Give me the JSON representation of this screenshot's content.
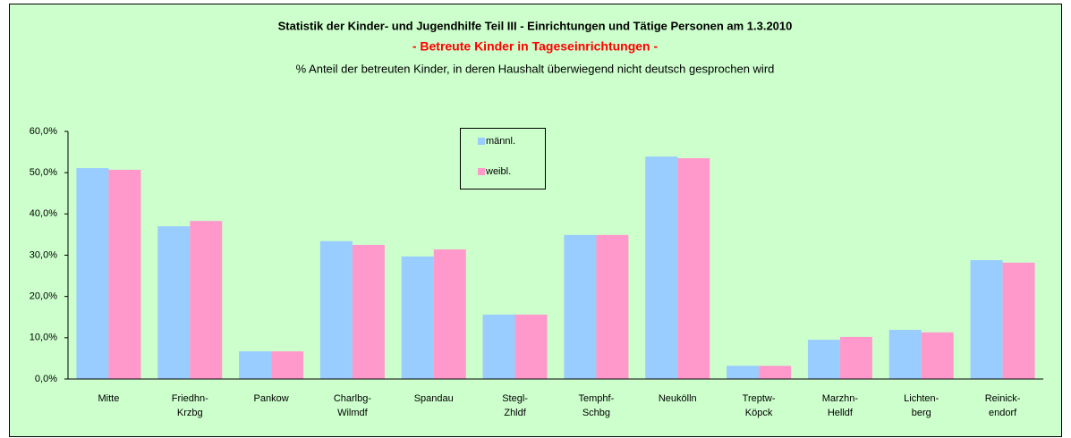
{
  "chart_data": {
    "type": "bar",
    "title": "Statistik der Kinder- und Jugendhilfe Teil III - Einrichtungen und Tätige Personen am 1.3.2010",
    "subtitle": "- Betreute Kinder in Tageseinrichtungen -",
    "description": "% Anteil der betreuten Kinder, in deren Haushalt überwiegend nicht deutsch gesprochen wird",
    "categories": [
      "Mitte",
      "Friedhn-\nKrzbg",
      "Pankow",
      "Charlbg-\nWilmdf",
      "Spandau",
      "Stegl-\nZhldf",
      "Temphf-\nSchbg",
      "Neukölln",
      "Treptw-\nKöpck",
      "Marzhn-\nHelldf",
      "Lichten-\nberg",
      "Reinick-\nendorf"
    ],
    "series": [
      {
        "name": "männl.",
        "color": "#99ccff",
        "values": [
          51.1,
          37.0,
          6.7,
          33.4,
          29.7,
          15.6,
          34.9,
          53.9,
          3.2,
          9.5,
          11.9,
          28.8
        ]
      },
      {
        "name": "weibl.",
        "color": "#ff99cc",
        "values": [
          50.7,
          38.3,
          6.7,
          32.5,
          31.4,
          15.6,
          34.9,
          53.5,
          3.2,
          10.2,
          11.3,
          28.2
        ]
      }
    ],
    "ylim": [
      0,
      60
    ],
    "yticks": [
      {
        "value": 0,
        "label": "0,0%"
      },
      {
        "value": 10,
        "label": "10,0%"
      },
      {
        "value": 20,
        "label": "20,0%"
      },
      {
        "value": 30,
        "label": "30,0%"
      },
      {
        "value": 40,
        "label": "40,0%"
      },
      {
        "value": 50,
        "label": "50,0%"
      },
      {
        "value": 60,
        "label": "60,0%"
      }
    ],
    "grid": false
  }
}
